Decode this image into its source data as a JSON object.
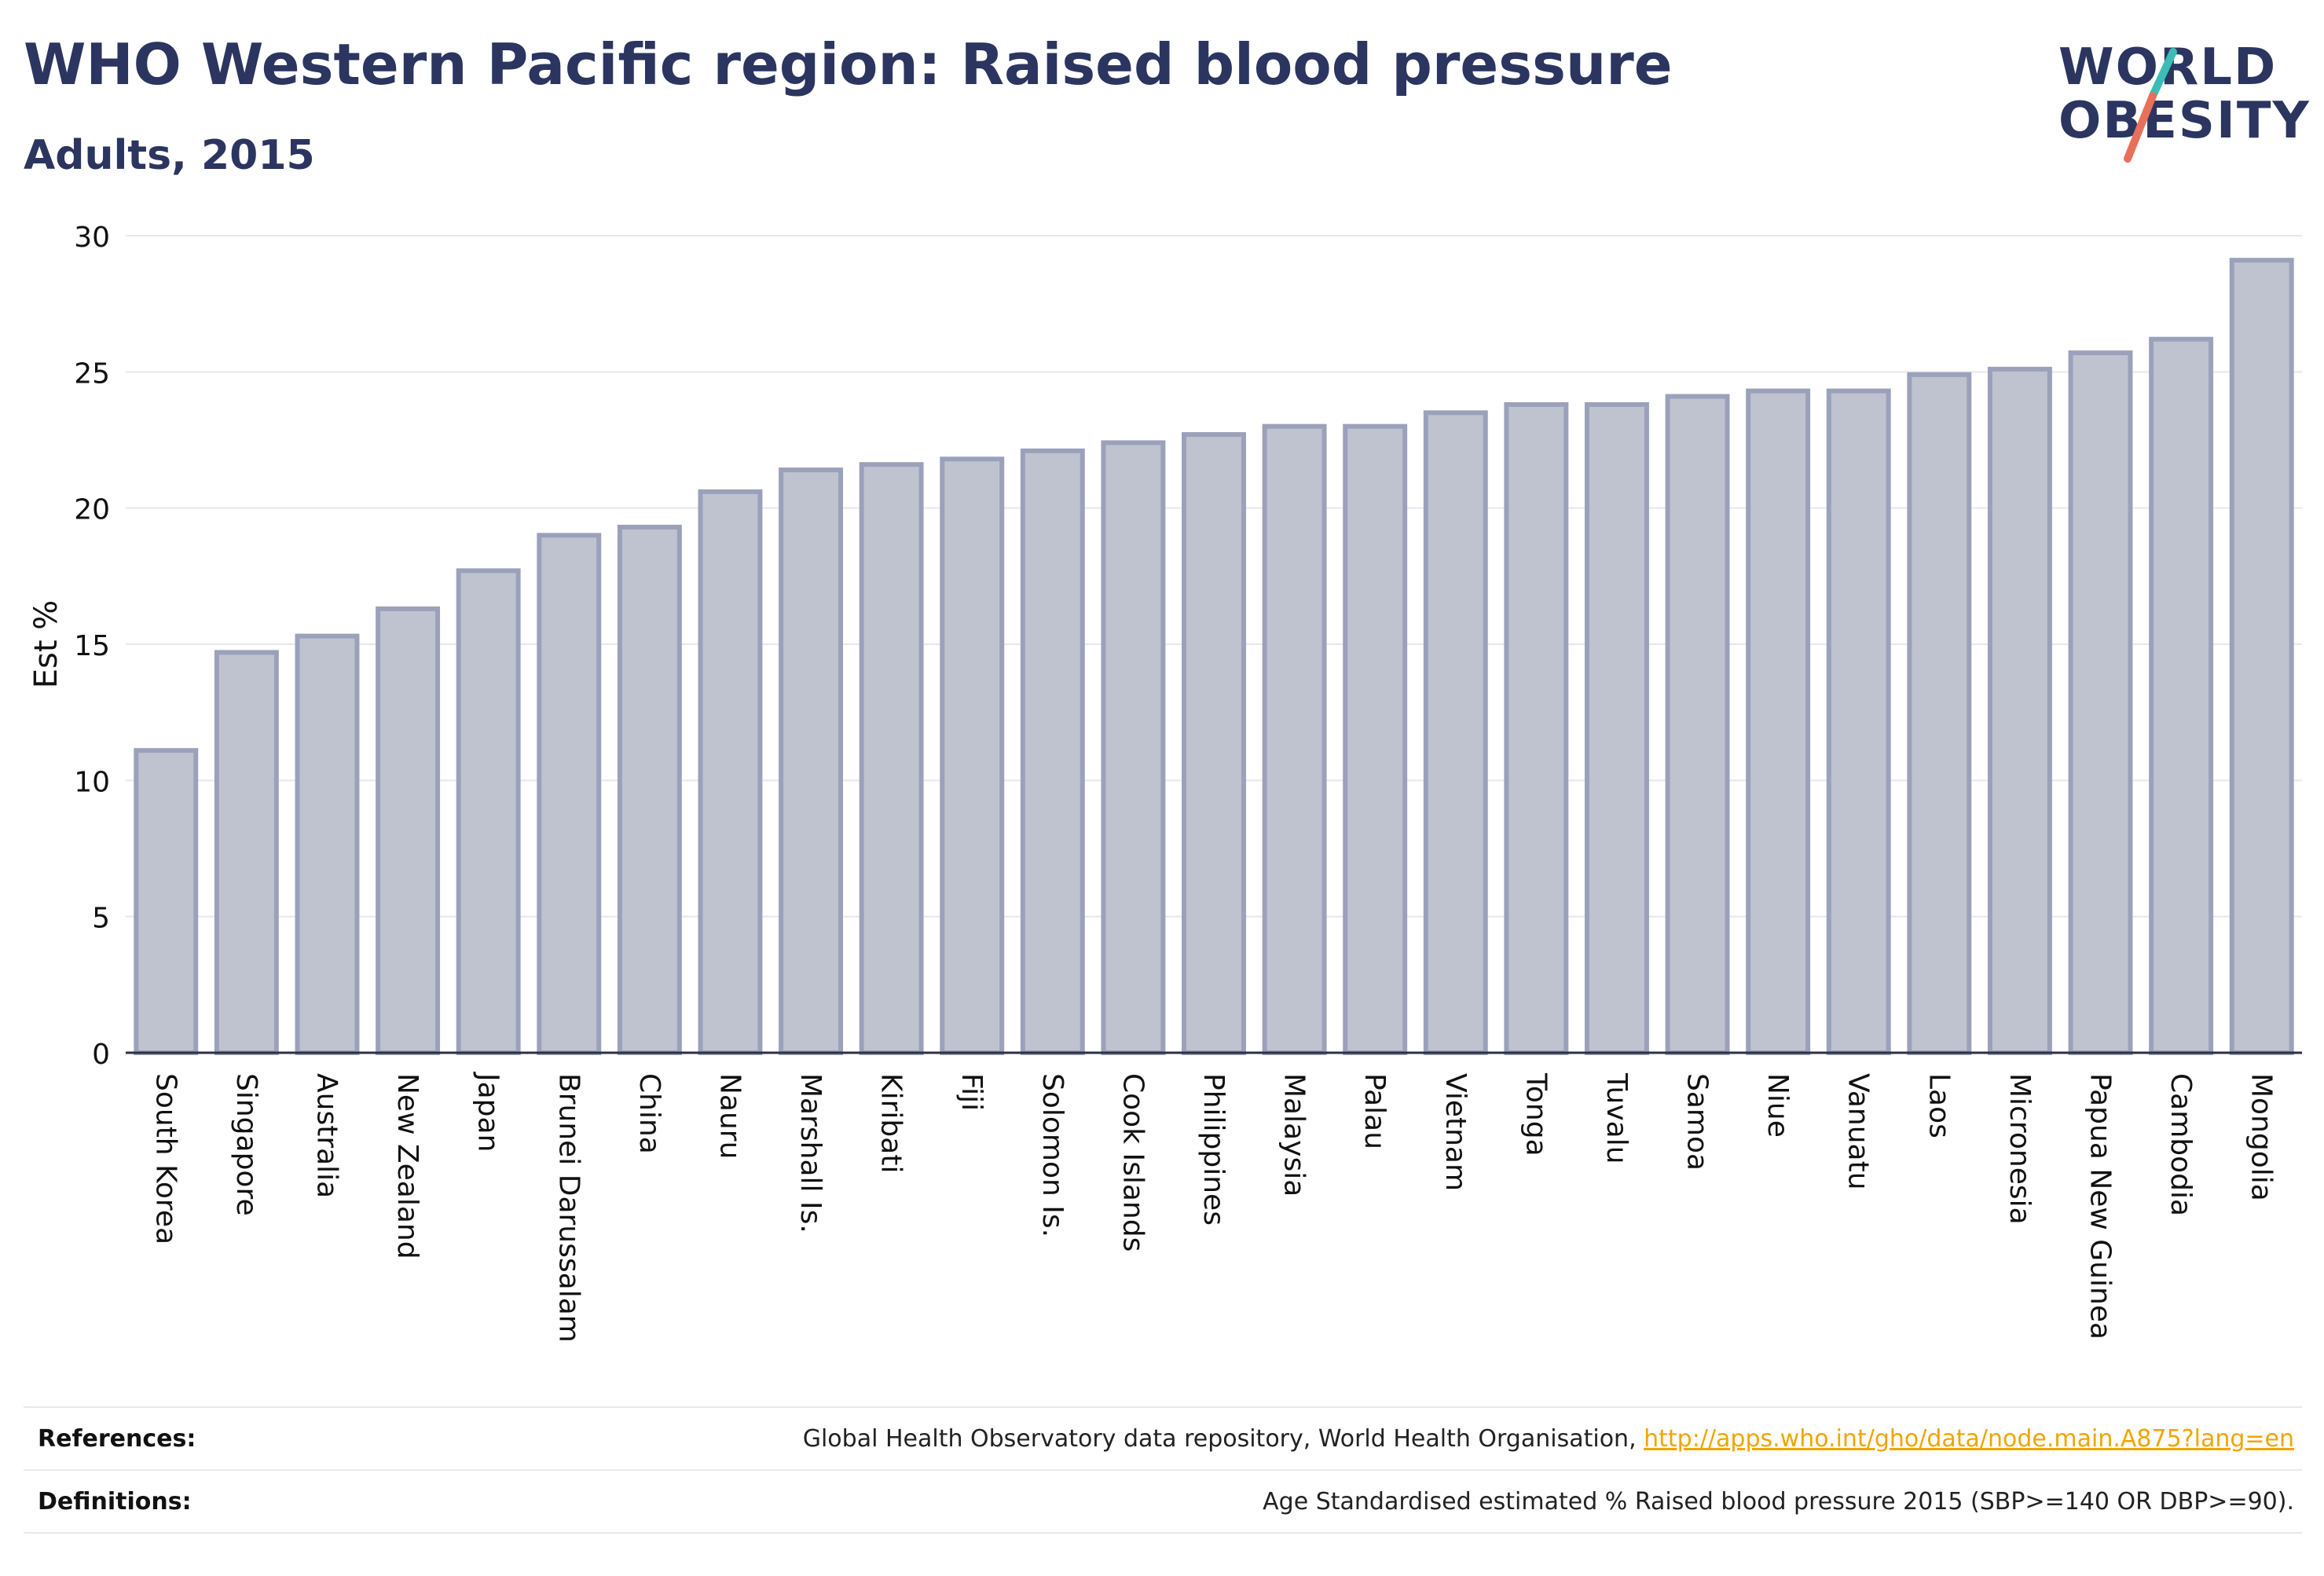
{
  "header": {
    "title": "WHO Western Pacific region: Raised blood pressure",
    "subtitle": "Adults, 2015"
  },
  "logo": {
    "line1": "WORLD",
    "line2": "OBESITY",
    "slash_top_color": "#3bbdb5",
    "slash_bottom_color": "#e8705a"
  },
  "chart_data": {
    "type": "bar",
    "ylabel": "Est %",
    "ylim": [
      0,
      30
    ],
    "yticks": [
      0,
      5,
      10,
      15,
      20,
      25,
      30
    ],
    "grid": true,
    "bar_fill": "#bfc3d0",
    "bar_stroke": "#9ba1ba",
    "categories": [
      "South Korea",
      "Singapore",
      "Australia",
      "New Zealand",
      "Japan",
      "Brunei Darussalam",
      "China",
      "Nauru",
      "Marshall Is.",
      "Kiribati",
      "Fiji",
      "Solomon Is.",
      "Cook Islands",
      "Philippines",
      "Malaysia",
      "Palau",
      "Vietnam",
      "Tonga",
      "Tuvalu",
      "Samoa",
      "Niue",
      "Vanuatu",
      "Laos",
      "Micronesia",
      "Papua New Guinea",
      "Cambodia",
      "Mongolia"
    ],
    "values": [
      11.1,
      14.7,
      15.3,
      16.3,
      17.7,
      19.0,
      19.3,
      20.6,
      21.4,
      21.6,
      21.8,
      22.1,
      22.4,
      22.7,
      23.0,
      23.0,
      23.5,
      23.8,
      23.8,
      24.1,
      24.3,
      24.3,
      24.9,
      25.1,
      25.7,
      26.2,
      29.1
    ]
  },
  "footer": {
    "references_label": "References:",
    "references_text": "Global Health Observatory data repository, World Health Organisation, ",
    "references_link": "http://apps.who.int/gho/data/node.main.A875?lang=en",
    "definitions_label": "Definitions:",
    "definitions_text": "Age Standardised estimated % Raised blood pressure 2015 (SBP>=140 OR DBP>=90)."
  }
}
